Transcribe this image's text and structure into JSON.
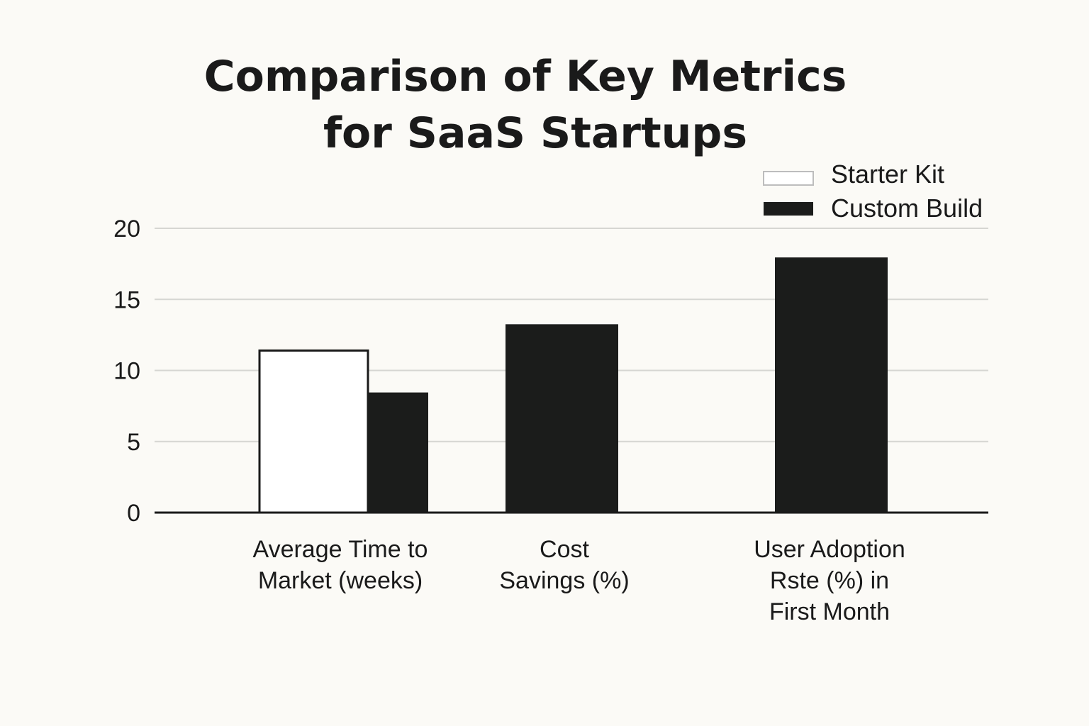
{
  "chart_data": {
    "type": "bar",
    "title_lines": [
      "Comparison of Key Metrics",
      "for SaaS Startups"
    ],
    "categories": [
      [
        "Average Time to",
        "Market (weeks)"
      ],
      [
        "Cost",
        "Savings (%)"
      ],
      [
        "User Adoption",
        "Rste (%) in",
        "First Month"
      ]
    ],
    "series": [
      {
        "name": "Starter Kit",
        "values": [
          11.4,
          null,
          null
        ],
        "color": "#ffffff",
        "stroke": "#1a1a1a"
      },
      {
        "name": "Custom Build",
        "values": [
          8.4,
          13.2,
          17.9
        ],
        "color": "#1b1c1b",
        "stroke": "#1b1c1b"
      }
    ],
    "yticks": [
      0,
      5,
      10,
      15,
      20
    ],
    "ylim": [
      0,
      20
    ],
    "grid": true,
    "legend_position": "top-right",
    "xlabel": "",
    "ylabel": ""
  }
}
